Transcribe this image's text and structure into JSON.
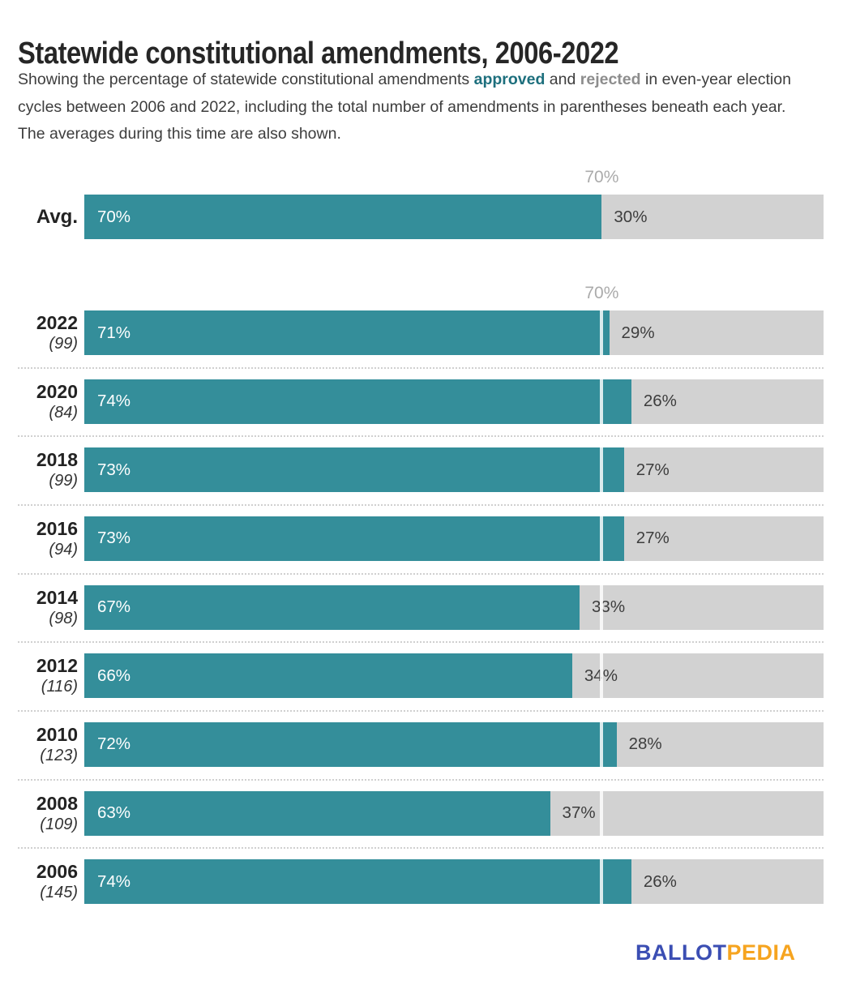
{
  "title": "Statewide constitutional amendments, 2006-2022",
  "subtitle": {
    "part1": "Showing the percentage of statewide constitutional amendments ",
    "approved_word": "approved",
    "part2": " and ",
    "rejected_word": "rejected",
    "part3": " in even-year election cycles between 2006 and 2022, including the total number of amendments in parentheses beneath each year. The averages during this time are also shown."
  },
  "chart_data": {
    "type": "bar",
    "orientation": "horizontal",
    "stacked": true,
    "series_names": [
      "approved",
      "rejected"
    ],
    "colors": {
      "approved": "#348E9A",
      "rejected": "#D2D2D2",
      "reference_line": "#FFFFFF",
      "approved_text": "#FFFFFF",
      "rejected_text": "#3D3D3D",
      "reference_label_text": "#ABABAB"
    },
    "xlim": [
      0,
      100
    ],
    "reference_value": 70,
    "reference_label": "70%",
    "average_row": {
      "label": "Avg.",
      "approved": 70,
      "rejected": 30,
      "approved_label": "70%",
      "rejected_label": "30%"
    },
    "rows": [
      {
        "year": "2022",
        "count_label": "(99)",
        "count": 99,
        "approved": 71,
        "rejected": 29,
        "approved_label": "71%",
        "rejected_label": "29%"
      },
      {
        "year": "2020",
        "count_label": "(84)",
        "count": 84,
        "approved": 74,
        "rejected": 26,
        "approved_label": "74%",
        "rejected_label": "26%"
      },
      {
        "year": "2018",
        "count_label": "(99)",
        "count": 99,
        "approved": 73,
        "rejected": 27,
        "approved_label": "73%",
        "rejected_label": "27%"
      },
      {
        "year": "2016",
        "count_label": "(94)",
        "count": 94,
        "approved": 73,
        "rejected": 27,
        "approved_label": "73%",
        "rejected_label": "27%"
      },
      {
        "year": "2014",
        "count_label": "(98)",
        "count": 98,
        "approved": 67,
        "rejected": 33,
        "approved_label": "67%",
        "rejected_label": "33%"
      },
      {
        "year": "2012",
        "count_label": "(116)",
        "count": 116,
        "approved": 66,
        "rejected": 34,
        "approved_label": "66%",
        "rejected_label": "34%"
      },
      {
        "year": "2010",
        "count_label": "(123)",
        "count": 123,
        "approved": 72,
        "rejected": 28,
        "approved_label": "72%",
        "rejected_label": "28%"
      },
      {
        "year": "2008",
        "count_label": "(109)",
        "count": 109,
        "approved": 63,
        "rejected": 37,
        "approved_label": "63%",
        "rejected_label": "37%"
      },
      {
        "year": "2006",
        "count_label": "(145)",
        "count": 145,
        "approved": 74,
        "rejected": 26,
        "approved_label": "74%",
        "rejected_label": "26%"
      }
    ]
  },
  "logo": {
    "part1": "BALLOT",
    "part2": "PEDIA"
  }
}
